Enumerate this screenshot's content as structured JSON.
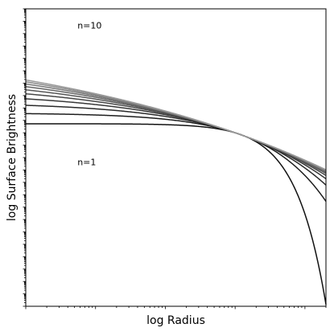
{
  "chart_data": {
    "type": "line",
    "title": "",
    "xlabel": "log Radius",
    "ylabel": "log Surface Brightness",
    "x_scale": "log",
    "y_scale": "log",
    "xlim": [
      0.001,
      20
    ],
    "ylim": [
      1e-14,
      10000000000.0
    ],
    "grid": false,
    "legend": "none",
    "model": "Sersic surface-brightness profiles, normalized at r = 1",
    "series": [
      {
        "n": 1,
        "color": "#111111"
      },
      {
        "n": 2,
        "color": "#1d1d1d"
      },
      {
        "n": 3,
        "color": "#2a2a2a"
      },
      {
        "n": 4,
        "color": "#383838"
      },
      {
        "n": 5,
        "color": "#474747"
      },
      {
        "n": 6,
        "color": "#575757"
      },
      {
        "n": 7,
        "color": "#666666"
      },
      {
        "n": 8,
        "color": "#777777"
      },
      {
        "n": 9,
        "color": "#888888"
      },
      {
        "n": 10,
        "color": "#999999"
      }
    ],
    "annotations": [
      {
        "text": "n=10",
        "x": 0.0055,
        "y": 250000000.0
      },
      {
        "text": "n=1",
        "x": 0.0055,
        "y": 0.0025
      }
    ]
  }
}
